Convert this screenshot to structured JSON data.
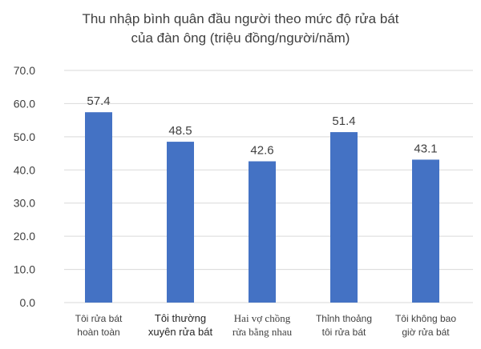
{
  "chart_data": {
    "type": "bar",
    "title_lines": [
      "Thu nhập bình quân đầu người theo mức độ rửa bát",
      "của đàn ông (triệu đồng/người/năm)"
    ],
    "categories": [
      [
        "Tôi rửa bát",
        "hoàn toàn"
      ],
      [
        "Tôi thường",
        "xuyên rửa bát"
      ],
      [
        "Hai vợ chồng",
        "rửa bằng nhau"
      ],
      [
        "Thỉnh thoảng",
        "tôi rửa bát"
      ],
      [
        "Tôi không bao",
        "giờ rửa bát"
      ]
    ],
    "values": [
      57.4,
      48.5,
      42.6,
      51.4,
      43.1
    ],
    "value_labels": [
      "57.4",
      "48.5",
      "42.6",
      "51.4",
      "43.1"
    ],
    "ylim": [
      0,
      70
    ],
    "y_ticks": [
      "0.0",
      "10.0",
      "20.0",
      "30.0",
      "40.0",
      "50.0",
      "60.0",
      "70.0"
    ],
    "grid": true,
    "legend": "none",
    "xlabel": "",
    "ylabel": "",
    "colors": {
      "bar": "#4472C4",
      "grid": "#D9D9D9",
      "text": "#404040"
    }
  }
}
